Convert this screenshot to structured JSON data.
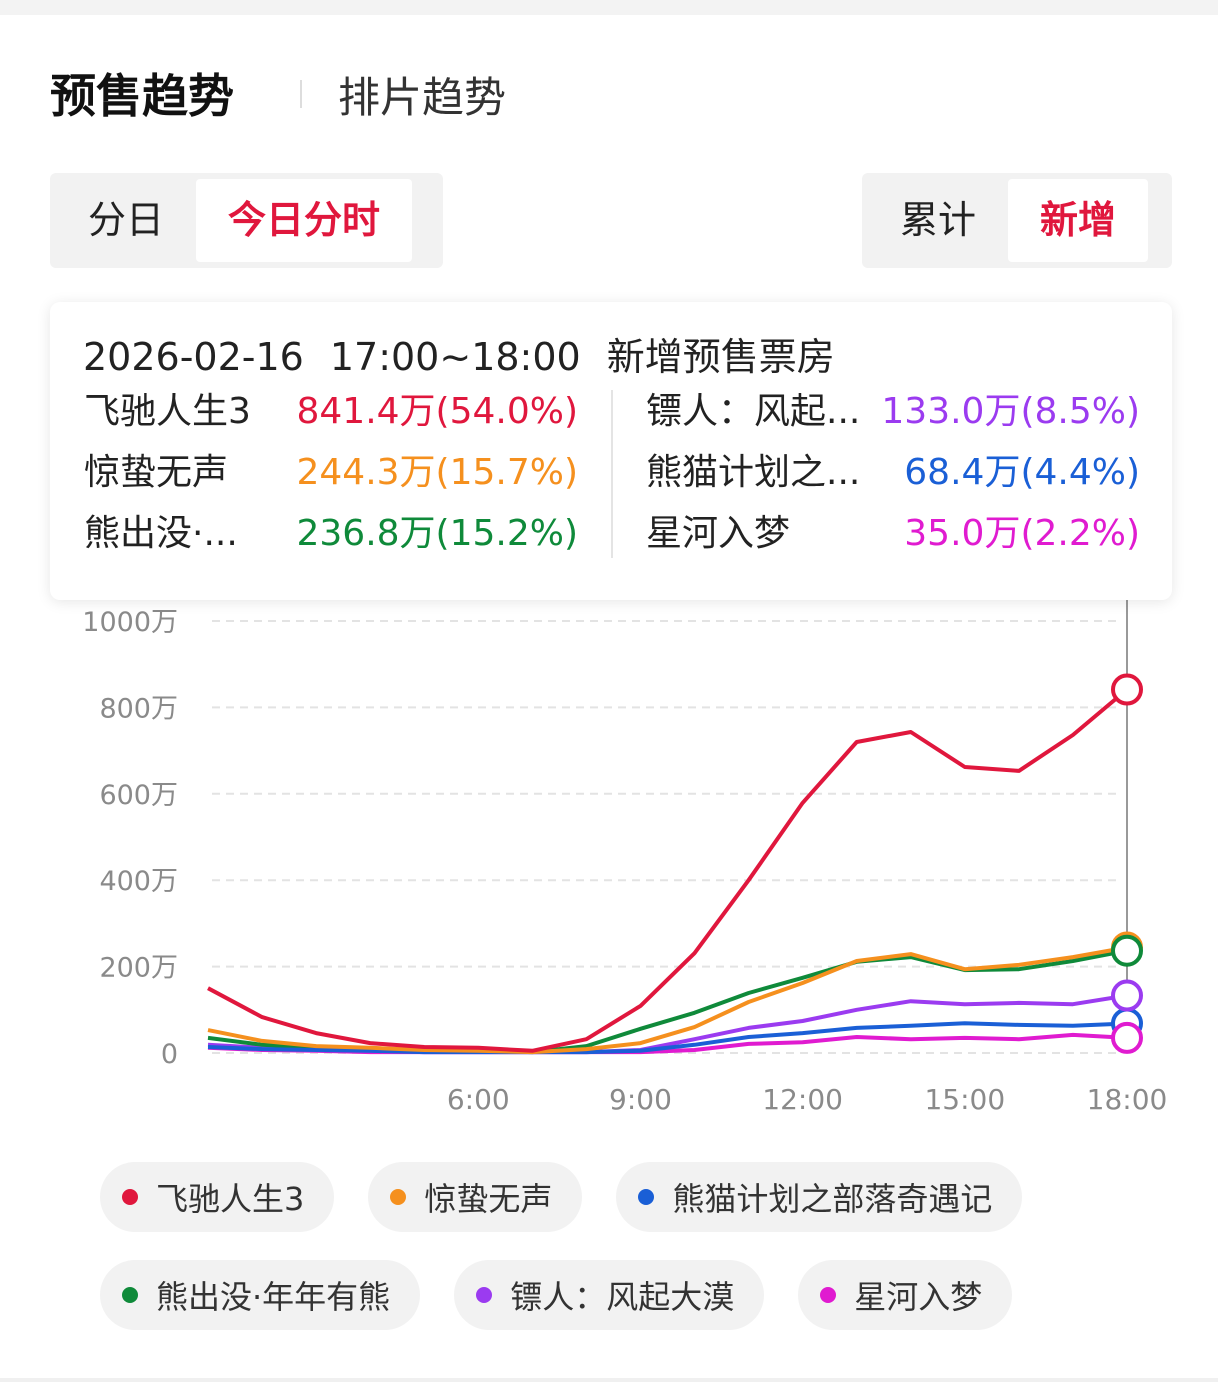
{
  "tabs": [
    "预售趋势",
    "排片趋势"
  ],
  "toggles": {
    "left": [
      "分日",
      "今日分时"
    ],
    "right": [
      "累计",
      "新增"
    ]
  },
  "tooltip": {
    "date": "2026-02-16",
    "time": "17:00~18:00",
    "label": "新增预售票房",
    "items": [
      {
        "name": "飞驰人生3",
        "value": "841.4万(54.0%)",
        "color": "#e0173d"
      },
      {
        "name": "惊蛰无声",
        "value": "244.3万(15.7%)",
        "color": "#f5901e"
      },
      {
        "name": "熊出没·...",
        "value": "236.8万(15.2%)",
        "color": "#0f8a3a"
      },
      {
        "name": "镖人：风起...",
        "value": "133.0万(8.5%)",
        "color": "#9b3bf0"
      },
      {
        "name": "熊猫计划之...",
        "value": "68.4万(4.4%)",
        "color": "#1a5fd6"
      },
      {
        "name": "星河入梦",
        "value": "35.0万(2.2%)",
        "color": "#e01bd0"
      }
    ]
  },
  "chart_data": {
    "type": "line",
    "categories": [
      null,
      null,
      null,
      null,
      null,
      "6:00",
      null,
      null,
      "9:00",
      null,
      null,
      "12:00",
      null,
      null,
      "15:00",
      null,
      null,
      "18:00"
    ],
    "ylim": [
      0,
      1000
    ],
    "yticks": [
      0,
      {
        "value": 200,
        "label": "200万"
      },
      {
        "value": 400,
        "label": "400万"
      },
      {
        "value": 600,
        "label": "600万"
      },
      {
        "value": 800,
        "label": "800万"
      },
      {
        "value": 1000,
        "label": "1000万"
      }
    ],
    "grid": true,
    "series": [
      {
        "name": "飞驰人生3",
        "color": "#e0173d",
        "values": [
          150,
          83,
          46,
          23,
          14,
          12,
          5,
          32,
          109,
          231,
          400,
          579,
          720,
          743,
          662,
          653,
          736,
          841.4
        ]
      },
      {
        "name": "惊蛰无声",
        "color": "#f5901e",
        "values": [
          53,
          28,
          16,
          12,
          7,
          5,
          2,
          9,
          23,
          60,
          118,
          162,
          213,
          229,
          194,
          204,
          222,
          244.3
        ]
      },
      {
        "name": "熊猫计划之部落奇遇记",
        "color": "#1a5fd6",
        "values": [
          14,
          9,
          7,
          5,
          2,
          2,
          2,
          2,
          5,
          19,
          37,
          46,
          58,
          63,
          69,
          65,
          63,
          68.4
        ]
      },
      {
        "name": "熊出没·年年有熊",
        "color": "#0f8a3a",
        "values": [
          35,
          19,
          12,
          7,
          5,
          5,
          2,
          16,
          56,
          93,
          139,
          174,
          211,
          222,
          192,
          194,
          213,
          236.8
        ]
      },
      {
        "name": "镖人：风起大漠",
        "color": "#9b3bf0",
        "values": [
          19,
          12,
          7,
          5,
          2,
          2,
          2,
          2,
          7,
          32,
          58,
          74,
          100,
          120,
          113,
          116,
          113,
          133
        ]
      },
      {
        "name": "星河入梦",
        "color": "#e01bd0",
        "values": [
          12,
          7,
          5,
          2,
          2,
          2,
          2,
          2,
          2,
          7,
          21,
          25,
          37,
          32,
          35,
          32,
          42,
          35
        ]
      }
    ]
  }
}
